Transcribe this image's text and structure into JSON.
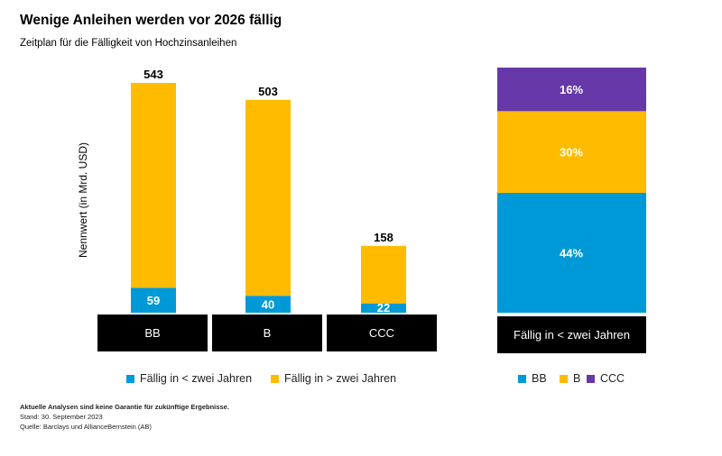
{
  "title": "Wenige Anleihen werden vor 2026 fällig",
  "subtitle": "Zeitplan für die Fälligkeit von Hochzinsanleihen",
  "colors": {
    "bb": "#0099d8",
    "b": "#ffbb00",
    "ccc": "#6638a8"
  },
  "chart_data": [
    {
      "type": "bar",
      "stacked": true,
      "ylabel": "Nennwert (in Mrd. USD)",
      "categories": [
        "BB",
        "B",
        "CCC"
      ],
      "totals": [
        543,
        503,
        158
      ],
      "series": [
        {
          "name": "Fällig in < zwei Jahren",
          "values": [
            59,
            40,
            22
          ],
          "color": "#0099d8"
        },
        {
          "name": "Fällig in > zwei Jahren",
          "values": [
            484,
            463,
            136
          ],
          "color": "#ffbb00"
        }
      ]
    },
    {
      "type": "bar",
      "stacked": true,
      "categories": [
        "Fällig in < zwei Jahren"
      ],
      "series": [
        {
          "name": "BB",
          "values": [
            44
          ],
          "label": "44%",
          "color": "#0099d8"
        },
        {
          "name": "B",
          "values": [
            30
          ],
          "label": "30%",
          "color": "#ffbb00"
        },
        {
          "name": "CCC",
          "values": [
            16
          ],
          "label": "16%",
          "color": "#6638a8"
        }
      ]
    }
  ],
  "footer": {
    "disclaimer": "Aktuelle Analysen sind keine Garantie für zukünftige Ergebnisse.",
    "date": "Stand: 30. September 2023",
    "source": "Quelle: Barclays und AllianceBernstein (AB)"
  }
}
